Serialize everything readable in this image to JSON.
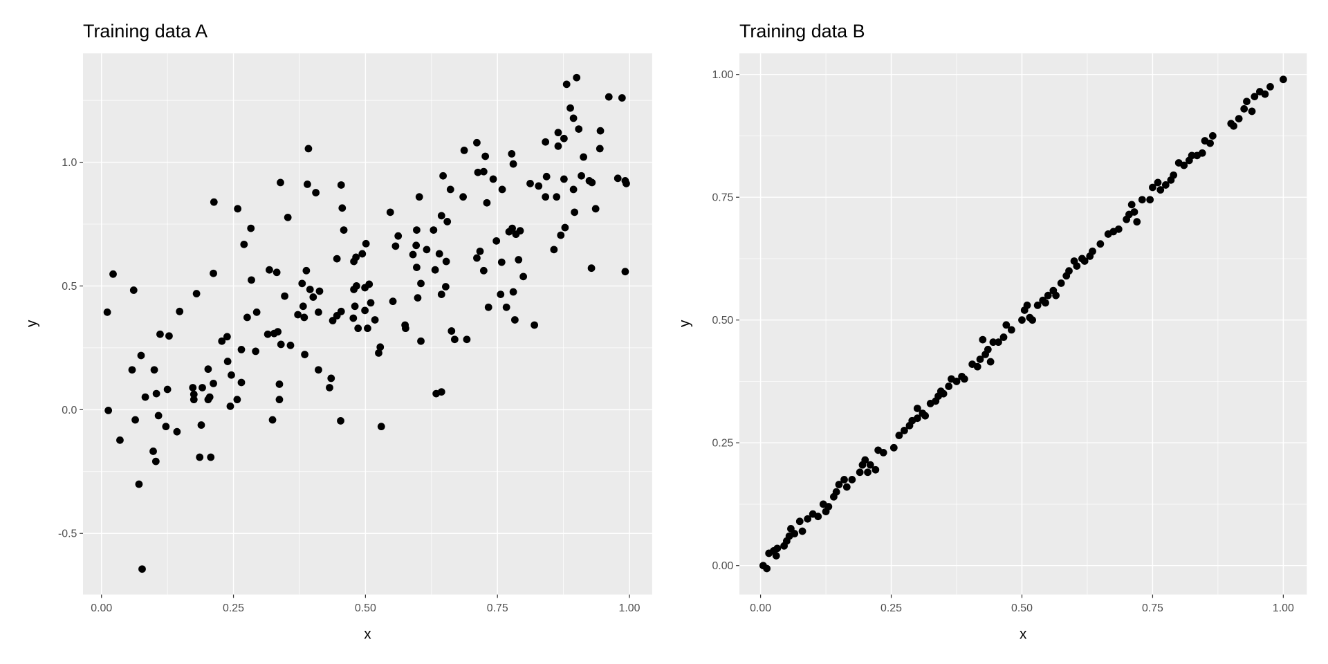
{
  "chart_data": [
    {
      "type": "scatter",
      "title": "Training data A",
      "xlabel": "x",
      "ylabel": "y",
      "xlim": [
        -0.035,
        1.043
      ],
      "ylim": [
        -0.747,
        1.44
      ],
      "xticks": [
        0,
        0.25,
        0.5,
        0.75,
        1.0
      ],
      "xtick_labels": [
        "0.00",
        "0.25",
        "0.50",
        "0.75",
        "1.00"
      ],
      "yticks": [
        -0.5,
        0,
        0.5,
        1.0
      ],
      "ytick_labels": [
        "-0.5",
        "0.0",
        "0.5",
        "1.0"
      ],
      "grid": true,
      "point_color": "#000000",
      "panel_background": "#ebebeb",
      "points": [
        [
          0.011,
          0.394
        ],
        [
          0.022,
          0.548
        ],
        [
          0.013,
          -0.003
        ],
        [
          0.035,
          -0.123
        ],
        [
          0.061,
          0.483
        ],
        [
          0.058,
          0.161
        ],
        [
          0.064,
          -0.041
        ],
        [
          0.071,
          -0.301
        ],
        [
          0.075,
          0.219
        ],
        [
          0.077,
          -0.644
        ],
        [
          0.083,
          0.051
        ],
        [
          0.1,
          0.161
        ],
        [
          0.098,
          -0.168
        ],
        [
          0.103,
          -0.209
        ],
        [
          0.104,
          0.065
        ],
        [
          0.108,
          -0.024
        ],
        [
          0.111,
          0.305
        ],
        [
          0.122,
          -0.068
        ],
        [
          0.125,
          0.082
        ],
        [
          0.128,
          0.298
        ],
        [
          0.143,
          -0.089
        ],
        [
          0.148,
          0.397
        ],
        [
          0.173,
          0.089
        ],
        [
          0.175,
          0.062
        ],
        [
          0.175,
          0.041
        ],
        [
          0.18,
          0.469
        ],
        [
          0.186,
          -0.192
        ],
        [
          0.189,
          -0.062
        ],
        [
          0.191,
          0.089
        ],
        [
          0.202,
          0.164
        ],
        [
          0.202,
          0.041
        ],
        [
          0.205,
          0.051
        ],
        [
          0.207,
          -0.192
        ],
        [
          0.212,
          0.106
        ],
        [
          0.212,
          0.551
        ],
        [
          0.213,
          0.839
        ],
        [
          0.228,
          0.277
        ],
        [
          0.238,
          0.295
        ],
        [
          0.239,
          0.195
        ],
        [
          0.244,
          0.014
        ],
        [
          0.246,
          0.14
        ],
        [
          0.257,
          0.041
        ],
        [
          0.258,
          0.812
        ],
        [
          0.265,
          0.243
        ],
        [
          0.265,
          0.11
        ],
        [
          0.27,
          0.668
        ],
        [
          0.276,
          0.373
        ],
        [
          0.283,
          0.733
        ],
        [
          0.284,
          0.524
        ],
        [
          0.292,
          0.236
        ],
        [
          0.294,
          0.394
        ],
        [
          0.315,
          0.305
        ],
        [
          0.318,
          0.565
        ],
        [
          0.324,
          -0.041
        ],
        [
          0.327,
          0.308
        ],
        [
          0.332,
          0.555
        ],
        [
          0.334,
          0.315
        ],
        [
          0.337,
          0.103
        ],
        [
          0.337,
          0.041
        ],
        [
          0.339,
          0.918
        ],
        [
          0.34,
          0.264
        ],
        [
          0.347,
          0.459
        ],
        [
          0.353,
          0.777
        ],
        [
          0.358,
          0.26
        ],
        [
          0.372,
          0.384
        ],
        [
          0.38,
          0.51
        ],
        [
          0.382,
          0.418
        ],
        [
          0.384,
          0.373
        ],
        [
          0.385,
          0.223
        ],
        [
          0.388,
          0.562
        ],
        [
          0.39,
          0.911
        ],
        [
          0.392,
          1.055
        ],
        [
          0.395,
          0.486
        ],
        [
          0.401,
          0.455
        ],
        [
          0.406,
          0.877
        ],
        [
          0.411,
          0.394
        ],
        [
          0.413,
          0.479
        ],
        [
          0.411,
          0.161
        ],
        [
          0.432,
          0.089
        ],
        [
          0.435,
          0.127
        ],
        [
          0.438,
          0.36
        ],
        [
          0.446,
          0.61
        ],
        [
          0.446,
          0.38
        ],
        [
          0.453,
          -0.045
        ],
        [
          0.454,
          0.908
        ],
        [
          0.456,
          0.815
        ],
        [
          0.459,
          0.726
        ],
        [
          0.454,
          0.397
        ],
        [
          0.477,
          0.37
        ],
        [
          0.478,
          0.599
        ],
        [
          0.478,
          0.486
        ],
        [
          0.48,
          0.418
        ],
        [
          0.482,
          0.616
        ],
        [
          0.483,
          0.5
        ],
        [
          0.486,
          0.329
        ],
        [
          0.494,
          0.63
        ],
        [
          0.499,
          0.493
        ],
        [
          0.499,
          0.401
        ],
        [
          0.501,
          0.671
        ],
        [
          0.504,
          0.329
        ],
        [
          0.507,
          0.507
        ],
        [
          0.51,
          0.432
        ],
        [
          0.518,
          0.363
        ],
        [
          0.525,
          0.229
        ],
        [
          0.528,
          0.253
        ],
        [
          0.53,
          -0.068
        ],
        [
          0.547,
          0.798
        ],
        [
          0.552,
          0.438
        ],
        [
          0.557,
          0.661
        ],
        [
          0.562,
          0.702
        ],
        [
          0.575,
          0.342
        ],
        [
          0.576,
          0.329
        ],
        [
          0.59,
          0.627
        ],
        [
          0.596,
          0.664
        ],
        [
          0.597,
          0.726
        ],
        [
          0.597,
          0.575
        ],
        [
          0.599,
          0.452
        ],
        [
          0.602,
          0.86
        ],
        [
          0.605,
          0.51
        ],
        [
          0.605,
          0.277
        ],
        [
          0.616,
          0.647
        ],
        [
          0.629,
          0.726
        ],
        [
          0.632,
          0.565
        ],
        [
          0.634,
          0.065
        ],
        [
          0.644,
          0.072
        ],
        [
          0.64,
          0.63
        ],
        [
          0.644,
          0.466
        ],
        [
          0.644,
          0.784
        ],
        [
          0.647,
          0.945
        ],
        [
          0.652,
          0.497
        ],
        [
          0.653,
          0.599
        ],
        [
          0.655,
          0.76
        ],
        [
          0.661,
          0.89
        ],
        [
          0.663,
          0.318
        ],
        [
          0.669,
          0.284
        ],
        [
          0.685,
          0.86
        ],
        [
          0.687,
          1.048
        ],
        [
          0.692,
          0.284
        ],
        [
          0.711,
          0.613
        ],
        [
          0.711,
          1.079
        ],
        [
          0.713,
          0.959
        ],
        [
          0.717,
          0.64
        ],
        [
          0.724,
          0.962
        ],
        [
          0.724,
          0.562
        ],
        [
          0.727,
          1.024
        ],
        [
          0.73,
          0.836
        ],
        [
          0.733,
          0.414
        ],
        [
          0.742,
          0.932
        ],
        [
          0.748,
          0.682
        ],
        [
          0.756,
          0.466
        ],
        [
          0.758,
          0.596
        ],
        [
          0.759,
          0.89
        ],
        [
          0.767,
          0.414
        ],
        [
          0.772,
          0.719
        ],
        [
          0.777,
          1.034
        ],
        [
          0.778,
          0.733
        ],
        [
          0.78,
          0.993
        ],
        [
          0.78,
          0.476
        ],
        [
          0.783,
          0.363
        ],
        [
          0.785,
          0.709
        ],
        [
          0.79,
          0.606
        ],
        [
          0.793,
          0.723
        ],
        [
          0.799,
          0.538
        ],
        [
          0.812,
          0.914
        ],
        [
          0.82,
          0.342
        ],
        [
          0.828,
          0.904
        ],
        [
          0.841,
          1.082
        ],
        [
          0.841,
          0.86
        ],
        [
          0.843,
          0.942
        ],
        [
          0.857,
          0.647
        ],
        [
          0.862,
          0.86
        ],
        [
          0.865,
          1.12
        ],
        [
          0.865,
          1.065
        ],
        [
          0.87,
          0.705
        ],
        [
          0.876,
          1.096
        ],
        [
          0.876,
          0.932
        ],
        [
          0.878,
          0.736
        ],
        [
          0.881,
          1.315
        ],
        [
          0.888,
          1.219
        ],
        [
          0.894,
          1.178
        ],
        [
          0.894,
          0.89
        ],
        [
          0.896,
          0.798
        ],
        [
          0.9,
          1.342
        ],
        [
          0.904,
          1.134
        ],
        [
          0.909,
          0.945
        ],
        [
          0.913,
          1.021
        ],
        [
          0.924,
          0.925
        ],
        [
          0.929,
          0.918
        ],
        [
          0.928,
          0.572
        ],
        [
          0.936,
          0.812
        ],
        [
          0.944,
          1.055
        ],
        [
          0.945,
          1.127
        ],
        [
          0.961,
          1.264
        ],
        [
          0.978,
          0.935
        ],
        [
          0.986,
          1.26
        ],
        [
          0.992,
          0.925
        ],
        [
          0.994,
          0.914
        ],
        [
          0.992,
          0.558
        ]
      ]
    },
    {
      "type": "scatter",
      "title": "Training data B",
      "xlabel": "x",
      "ylabel": "y",
      "xlim": [
        -0.0405,
        1.045
      ],
      "ylim": [
        -0.059,
        1.043
      ],
      "xticks": [
        0,
        0.25,
        0.5,
        0.75,
        1.0
      ],
      "xtick_labels": [
        "0.00",
        "0.25",
        "0.50",
        "0.75",
        "1.00"
      ],
      "yticks": [
        0,
        0.25,
        0.5,
        0.75,
        1.0
      ],
      "ytick_labels": [
        "0.00",
        "0.25",
        "0.50",
        "0.75",
        "1.00"
      ],
      "grid": true,
      "point_color": "#000000",
      "panel_background": "#ebebeb",
      "points": [
        [
          0.005,
          0.0
        ],
        [
          0.012,
          -0.006
        ],
        [
          0.016,
          0.025
        ],
        [
          0.025,
          0.03
        ],
        [
          0.03,
          0.02
        ],
        [
          0.032,
          0.035
        ],
        [
          0.045,
          0.04
        ],
        [
          0.05,
          0.05
        ],
        [
          0.055,
          0.06
        ],
        [
          0.058,
          0.075
        ],
        [
          0.065,
          0.065
        ],
        [
          0.075,
          0.09
        ],
        [
          0.08,
          0.07
        ],
        [
          0.09,
          0.095
        ],
        [
          0.1,
          0.105
        ],
        [
          0.11,
          0.1
        ],
        [
          0.12,
          0.125
        ],
        [
          0.125,
          0.11
        ],
        [
          0.13,
          0.12
        ],
        [
          0.14,
          0.14
        ],
        [
          0.145,
          0.15
        ],
        [
          0.15,
          0.165
        ],
        [
          0.16,
          0.175
        ],
        [
          0.165,
          0.16
        ],
        [
          0.175,
          0.175
        ],
        [
          0.19,
          0.19
        ],
        [
          0.195,
          0.205
        ],
        [
          0.2,
          0.215
        ],
        [
          0.205,
          0.19
        ],
        [
          0.21,
          0.205
        ],
        [
          0.22,
          0.195
        ],
        [
          0.225,
          0.235
        ],
        [
          0.235,
          0.23
        ],
        [
          0.255,
          0.24
        ],
        [
          0.265,
          0.265
        ],
        [
          0.275,
          0.275
        ],
        [
          0.285,
          0.285
        ],
        [
          0.29,
          0.295
        ],
        [
          0.3,
          0.3
        ],
        [
          0.3,
          0.32
        ],
        [
          0.31,
          0.31
        ],
        [
          0.315,
          0.305
        ],
        [
          0.325,
          0.33
        ],
        [
          0.335,
          0.335
        ],
        [
          0.34,
          0.345
        ],
        [
          0.345,
          0.355
        ],
        [
          0.35,
          0.35
        ],
        [
          0.36,
          0.365
        ],
        [
          0.365,
          0.38
        ],
        [
          0.375,
          0.375
        ],
        [
          0.385,
          0.385
        ],
        [
          0.39,
          0.38
        ],
        [
          0.405,
          0.41
        ],
        [
          0.415,
          0.405
        ],
        [
          0.42,
          0.42
        ],
        [
          0.425,
          0.46
        ],
        [
          0.43,
          0.43
        ],
        [
          0.435,
          0.44
        ],
        [
          0.44,
          0.415
        ],
        [
          0.445,
          0.455
        ],
        [
          0.455,
          0.455
        ],
        [
          0.465,
          0.465
        ],
        [
          0.47,
          0.49
        ],
        [
          0.48,
          0.48
        ],
        [
          0.5,
          0.5
        ],
        [
          0.505,
          0.52
        ],
        [
          0.51,
          0.53
        ],
        [
          0.515,
          0.505
        ],
        [
          0.52,
          0.5
        ],
        [
          0.53,
          0.53
        ],
        [
          0.54,
          0.54
        ],
        [
          0.545,
          0.535
        ],
        [
          0.55,
          0.55
        ],
        [
          0.56,
          0.56
        ],
        [
          0.565,
          0.55
        ],
        [
          0.575,
          0.575
        ],
        [
          0.585,
          0.59
        ],
        [
          0.59,
          0.6
        ],
        [
          0.6,
          0.62
        ],
        [
          0.605,
          0.61
        ],
        [
          0.615,
          0.625
        ],
        [
          0.62,
          0.62
        ],
        [
          0.63,
          0.63
        ],
        [
          0.635,
          0.64
        ],
        [
          0.65,
          0.655
        ],
        [
          0.665,
          0.675
        ],
        [
          0.675,
          0.68
        ],
        [
          0.685,
          0.685
        ],
        [
          0.7,
          0.705
        ],
        [
          0.705,
          0.715
        ],
        [
          0.71,
          0.735
        ],
        [
          0.715,
          0.72
        ],
        [
          0.72,
          0.7
        ],
        [
          0.73,
          0.745
        ],
        [
          0.745,
          0.745
        ],
        [
          0.75,
          0.77
        ],
        [
          0.76,
          0.78
        ],
        [
          0.765,
          0.765
        ],
        [
          0.775,
          0.775
        ],
        [
          0.785,
          0.785
        ],
        [
          0.79,
          0.795
        ],
        [
          0.8,
          0.82
        ],
        [
          0.81,
          0.815
        ],
        [
          0.82,
          0.825
        ],
        [
          0.825,
          0.835
        ],
        [
          0.835,
          0.835
        ],
        [
          0.845,
          0.84
        ],
        [
          0.85,
          0.865
        ],
        [
          0.86,
          0.86
        ],
        [
          0.865,
          0.875
        ],
        [
          0.9,
          0.9
        ],
        [
          0.905,
          0.895
        ],
        [
          0.915,
          0.91
        ],
        [
          0.925,
          0.93
        ],
        [
          0.93,
          0.945
        ],
        [
          0.94,
          0.925
        ],
        [
          0.945,
          0.955
        ],
        [
          0.955,
          0.965
        ],
        [
          0.965,
          0.96
        ],
        [
          0.975,
          0.975
        ],
        [
          1.0,
          0.99
        ]
      ]
    }
  ]
}
